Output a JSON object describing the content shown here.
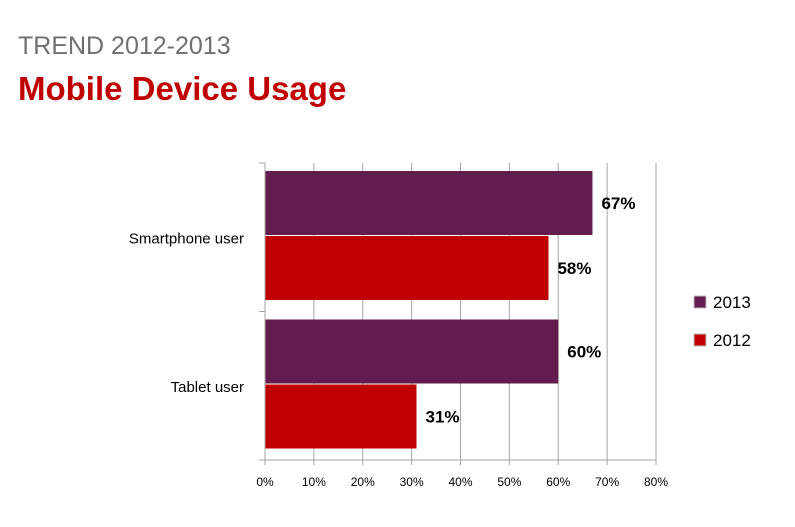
{
  "header": {
    "subtitle": "TREND 2012-2013",
    "title": "Mobile Device Usage"
  },
  "colors": {
    "series_2013": "#631c4e",
    "series_2012": "#c00000",
    "title": "#c00000",
    "subtitle": "#6f6f6f",
    "grid": "#a6a6a6"
  },
  "chart_data": {
    "type": "bar",
    "orientation": "horizontal",
    "title": "Mobile Device Usage",
    "subtitle": "TREND 2012-2013",
    "categories": [
      "Smartphone user",
      "Tablet user"
    ],
    "series": [
      {
        "name": "2013",
        "values": [
          67,
          60
        ],
        "labels": [
          "67%",
          "60%"
        ]
      },
      {
        "name": "2012",
        "values": [
          58,
          31
        ],
        "labels": [
          "58%",
          "31%"
        ]
      }
    ],
    "xlim": [
      0,
      80
    ],
    "xticks": [
      0,
      10,
      20,
      30,
      40,
      50,
      60,
      70,
      80
    ],
    "xtick_labels": [
      "0%",
      "10%",
      "20%",
      "30%",
      "40%",
      "50%",
      "60%",
      "70%",
      "80%"
    ],
    "xlabel": "",
    "ylabel": "",
    "grid": true,
    "legend": {
      "position": "right",
      "entries": [
        "2013",
        "2012"
      ]
    }
  }
}
